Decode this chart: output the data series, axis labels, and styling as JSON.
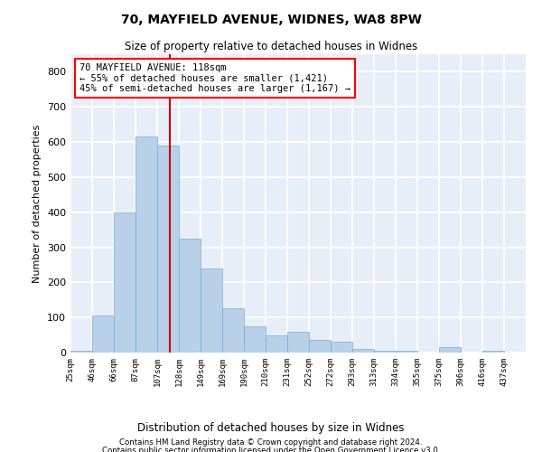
{
  "title1": "70, MAYFIELD AVENUE, WIDNES, WA8 8PW",
  "title2": "Size of property relative to detached houses in Widnes",
  "xlabel": "Distribution of detached houses by size in Widnes",
  "ylabel": "Number of detached properties",
  "footer1": "Contains HM Land Registry data © Crown copyright and database right 2024.",
  "footer2": "Contains public sector information licensed under the Open Government Licence v3.0.",
  "annotation_line1": "70 MAYFIELD AVENUE: 118sqm",
  "annotation_line2": "← 55% of detached houses are smaller (1,421)",
  "annotation_line3": "45% of semi-detached houses are larger (1,167) →",
  "bar_color": "#b8d0e8",
  "bar_edge_color": "#7aadd4",
  "marker_color": "#cc0000",
  "background_color": "#e8eef8",
  "grid_color": "#ffffff",
  "categories": [
    "25sqm",
    "46sqm",
    "66sqm",
    "87sqm",
    "107sqm",
    "128sqm",
    "149sqm",
    "169sqm",
    "190sqm",
    "210sqm",
    "231sqm",
    "252sqm",
    "272sqm",
    "293sqm",
    "313sqm",
    "334sqm",
    "355sqm",
    "375sqm",
    "396sqm",
    "416sqm",
    "437sqm"
  ],
  "values": [
    5,
    105,
    400,
    615,
    590,
    325,
    240,
    125,
    75,
    50,
    60,
    35,
    30,
    10,
    5,
    5,
    0,
    15,
    0,
    5,
    0
  ],
  "marker_bin": 4,
  "ylim": [
    0,
    850
  ],
  "yticks": [
    0,
    100,
    200,
    300,
    400,
    500,
    600,
    700,
    800
  ]
}
